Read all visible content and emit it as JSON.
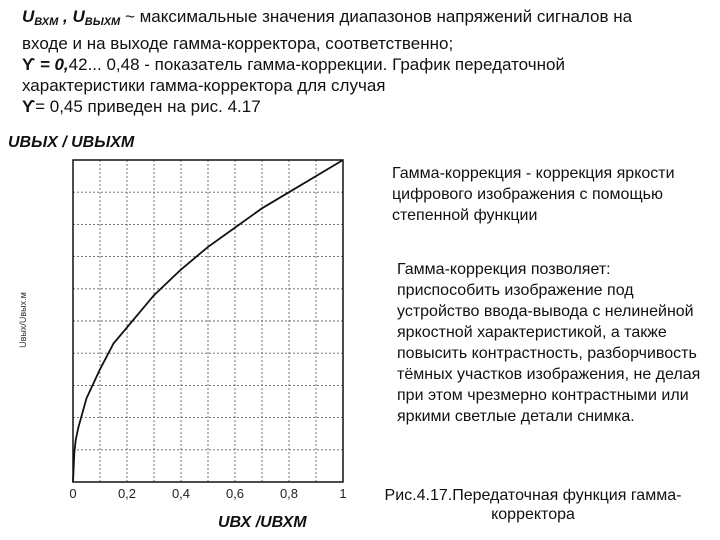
{
  "intro": {
    "line1": {
      "v_in": "U",
      "v_in_sub": "ВХМ",
      "comma": " , ",
      "v_out": "U",
      "v_out_sub": "ВЫХМ",
      "text": " ~ максимальные значения диапазонов напряжений сигналов на"
    },
    "line2": "входе и на выходе гамма-корректора, соответственно;",
    "line3": {
      "symbol": "ϒ",
      "eq": " = 0,",
      "text": "42... 0,48 - показатель гамма-коррекции. График передаточной"
    },
    "line4": "характеристики гамма-корректора  для случая",
    "line5": {
      "symbol": "ϒ",
      "text": "= 0,45 приведен на рис. 4.17"
    }
  },
  "figure": {
    "y_label_top": "UВЫХ / UВЫХМ",
    "y_label_side": "Uвых/Uвых.м",
    "x_label": "UВХ /UВХМ",
    "caption": "Рис.4.17.Передаточная функция гамма-корректора"
  },
  "chart_data": {
    "type": "line",
    "title": "",
    "xlabel": "UВХ /UВХМ",
    "ylabel": "UВЫХ / UВЫХМ",
    "xlim": [
      0,
      1
    ],
    "ylim": [
      0,
      1
    ],
    "x_ticks": [
      "0",
      "0,2",
      "0,4",
      "0,6",
      "0,8",
      "1"
    ],
    "grid": true,
    "series": [
      {
        "x": [
          0,
          0.005,
          0.01,
          0.02,
          0.05,
          0.1,
          0.15,
          0.2,
          0.3,
          0.4,
          0.5,
          0.6,
          0.7,
          0.8,
          0.9,
          1.0
        ],
        "y": [
          0,
          0.09,
          0.13,
          0.17,
          0.26,
          0.35,
          0.43,
          0.48,
          0.58,
          0.66,
          0.73,
          0.79,
          0.85,
          0.9,
          0.95,
          1.0
        ]
      }
    ]
  },
  "notes": {
    "note1": "Гамма-коррекция - коррекция яркости цифрового изображения с помощью степенной функции",
    "note2": "Гамма-коррекция позволяет: приспособить изображение под устройство ввода-вывода с нелинейной яркостной характеристикой, а также повысить контрастность, разборчивость тёмных участков изображения, не делая при этом чрезмерно контрастными или яркими светлые детали снимка."
  }
}
